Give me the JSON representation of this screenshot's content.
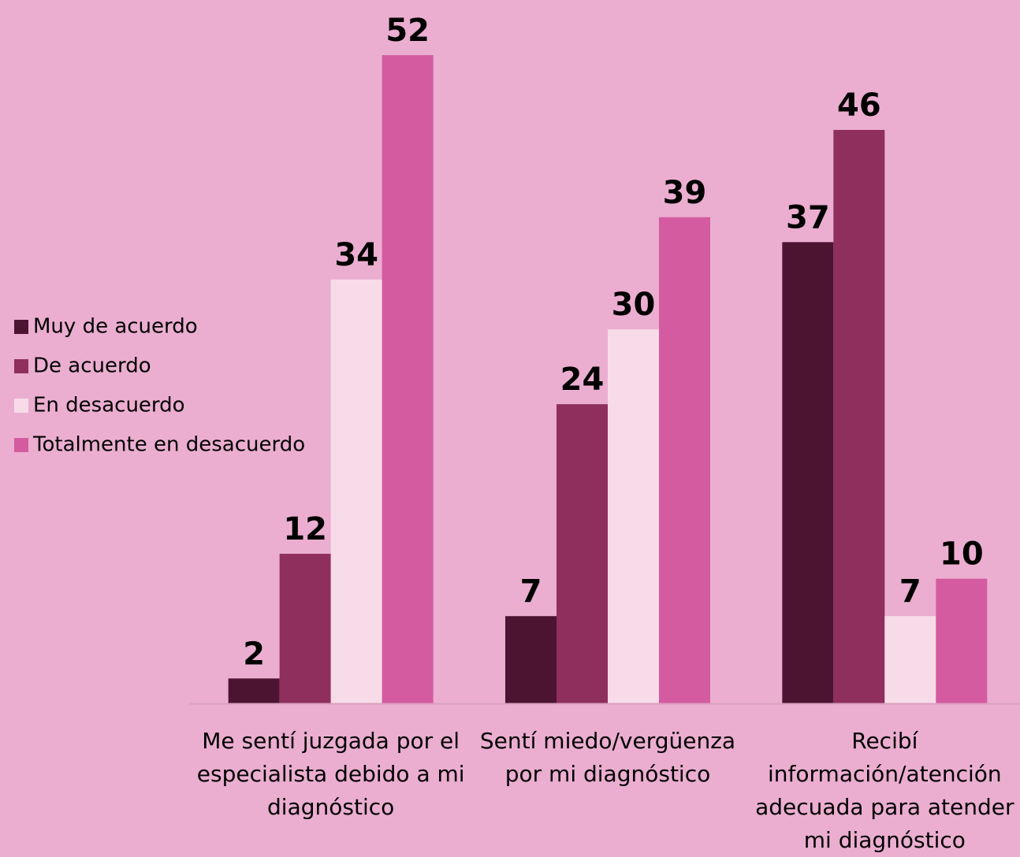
{
  "chart_data": {
    "type": "bar",
    "categories": [
      "Me sentí juzgada por el especialista debido a mi diagnóstico",
      "Sentí miedo/vergüenza por mi diagnóstico",
      "Recibí información/atención adecuada para atender mi diagnóstico"
    ],
    "series": [
      {
        "name": "Muy de acuerdo",
        "color": "#4d1431",
        "values": [
          2,
          7,
          37
        ]
      },
      {
        "name": "De acuerdo",
        "color": "#8e2f5e",
        "values": [
          12,
          24,
          46
        ]
      },
      {
        "name": "En desacuerdo",
        "color": "#f7dbe9",
        "values": [
          34,
          30,
          7
        ]
      },
      {
        "name": "Totalmente en desacuerdo",
        "color": "#d45ba0",
        "values": [
          52,
          39,
          10
        ]
      }
    ],
    "legend": "left"
  }
}
